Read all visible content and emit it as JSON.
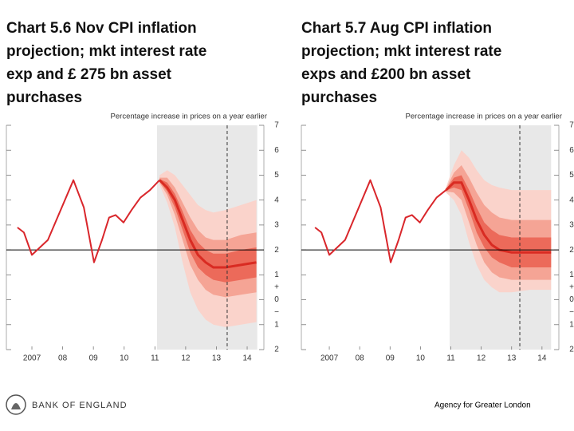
{
  "slide": {
    "bank_name": "BANK OF ENGLAND",
    "agency": "Agency for Greater London"
  },
  "chart_data": [
    {
      "type": "fan",
      "title": [
        "Chart 5.6 Nov CPI inflation",
        "projection; mkt interest rate",
        "exp and £ 275 bn asset",
        "purchases"
      ],
      "y_label": "Percentage increase in prices on a year earlier",
      "ylim": [
        -2,
        7
      ],
      "yticks": [
        7,
        6,
        5,
        4,
        3,
        2,
        1,
        0,
        {
          "value": -1,
          "label": "1"
        },
        {
          "value": -2,
          "label": "2"
        }
      ],
      "sign_labels": [
        {
          "value": 0.5,
          "label": "+"
        },
        {
          "value": -0.5,
          "label": "−"
        }
      ],
      "xlim": [
        2006.17,
        2014.44
      ],
      "xticks": [
        {
          "value": 2007,
          "label": "2007"
        },
        {
          "value": 2008,
          "label": "08"
        },
        {
          "value": 2009,
          "label": "09"
        },
        {
          "value": 2010,
          "label": "10"
        },
        {
          "value": 2011,
          "label": "11"
        },
        {
          "value": 2012,
          "label": "12"
        },
        {
          "value": 2013,
          "label": "13"
        },
        {
          "value": 2014,
          "label": "14"
        }
      ],
      "shading": [
        2011.07,
        2014.33
      ],
      "dashed_x": 2013.35,
      "reference_line": 2,
      "history": {
        "color": "#d9262b",
        "x": [
          2006.53,
          2006.74,
          2007.0,
          2007.52,
          2008.35,
          2008.69,
          2009.02,
          2009.28,
          2009.51,
          2009.72,
          2009.98,
          2010.24,
          2010.53,
          2010.84,
          2011.15
        ],
        "values": [
          2.9,
          2.7,
          1.8,
          2.4,
          4.8,
          3.7,
          1.5,
          2.4,
          3.3,
          3.4,
          3.1,
          3.6,
          4.1,
          4.4,
          4.8
        ]
      },
      "fan": {
        "x": [
          2011.15,
          2011.4,
          2011.65,
          2011.9,
          2012.15,
          2012.4,
          2012.65,
          2012.9,
          2013.3,
          2013.8,
          2014.3
        ],
        "central": [
          4.8,
          4.5,
          4.0,
          3.2,
          2.4,
          1.8,
          1.5,
          1.3,
          1.3,
          1.4,
          1.5
        ],
        "central_color": "#d92b22",
        "bands": [
          {
            "color": "#fad3cb",
            "upper": [
              5.0,
              5.2,
              5.0,
              4.6,
              4.2,
              3.8,
              3.6,
              3.5,
              3.6,
              3.8,
              4.0
            ],
            "lower": [
              4.6,
              3.9,
              2.9,
              1.5,
              0.3,
              -0.4,
              -0.8,
              -1.0,
              -1.1,
              -1.0,
              -0.9
            ]
          },
          {
            "color": "#f5a495",
            "upper": [
              4.9,
              4.9,
              4.5,
              3.9,
              3.3,
              2.8,
              2.5,
              2.4,
              2.4,
              2.6,
              2.7
            ],
            "lower": [
              4.7,
              4.2,
              3.4,
              2.4,
              1.4,
              0.8,
              0.4,
              0.2,
              0.1,
              0.2,
              0.3
            ]
          },
          {
            "color": "#ec6a5a",
            "upper": [
              4.85,
              4.7,
              4.25,
              3.55,
              2.8,
              2.3,
              2.0,
              1.85,
              1.85,
              2.0,
              2.1
            ],
            "lower": [
              4.75,
              4.35,
              3.7,
              2.8,
              1.9,
              1.3,
              1.0,
              0.8,
              0.7,
              0.8,
              0.9
            ]
          }
        ]
      }
    },
    {
      "type": "fan",
      "title": [
        "Chart 5.7 Aug CPI inflation",
        "projection; mkt interest rate",
        "exps and £200 bn asset",
        "purchases"
      ],
      "y_label": "Percentage increase in prices on a year earlier",
      "ylim": [
        -2,
        7
      ],
      "yticks": [
        7,
        6,
        5,
        4,
        3,
        2,
        1,
        0,
        {
          "value": -1,
          "label": "1"
        },
        {
          "value": -2,
          "label": "2"
        }
      ],
      "sign_labels": [
        {
          "value": 0.5,
          "label": "+"
        },
        {
          "value": -0.5,
          "label": "−"
        }
      ],
      "xlim": [
        2006.08,
        2014.45
      ],
      "xticks": [
        {
          "value": 2007,
          "label": "2007"
        },
        {
          "value": 2008,
          "label": "08"
        },
        {
          "value": 2009,
          "label": "09"
        },
        {
          "value": 2010,
          "label": "10"
        },
        {
          "value": 2011,
          "label": "11"
        },
        {
          "value": 2012,
          "label": "12"
        },
        {
          "value": 2013,
          "label": "13"
        },
        {
          "value": 2014,
          "label": "14"
        }
      ],
      "shading": [
        2010.96,
        2014.3
      ],
      "dashed_x": 2013.27,
      "reference_line": 2,
      "history": {
        "color": "#d9262b",
        "x": [
          2006.53,
          2006.74,
          2007.0,
          2007.52,
          2008.35,
          2008.69,
          2009.02,
          2009.28,
          2009.51,
          2009.72,
          2009.98,
          2010.24,
          2010.53,
          2010.84
        ],
        "values": [
          2.9,
          2.7,
          1.8,
          2.4,
          4.8,
          3.7,
          1.5,
          2.4,
          3.3,
          3.4,
          3.1,
          3.6,
          4.1,
          4.4
        ]
      },
      "fan": {
        "x": [
          2010.84,
          2011.1,
          2011.35,
          2011.6,
          2011.85,
          2012.1,
          2012.35,
          2012.6,
          2013.0,
          2013.6,
          2014.3
        ],
        "central": [
          4.4,
          4.7,
          4.7,
          4.0,
          3.2,
          2.6,
          2.2,
          2.0,
          1.9,
          1.9,
          1.9
        ],
        "central_color": "#d92b22",
        "bands": [
          {
            "color": "#fad3cb",
            "upper": [
              4.5,
              5.4,
              6.0,
              5.7,
              5.2,
              4.8,
              4.6,
              4.5,
              4.4,
              4.4,
              4.4
            ],
            "lower": [
              4.3,
              4.0,
              3.4,
              2.3,
              1.4,
              0.8,
              0.5,
              0.3,
              0.3,
              0.4,
              0.4
            ]
          },
          {
            "color": "#f5a495",
            "upper": [
              4.45,
              5.1,
              5.4,
              4.9,
              4.3,
              3.8,
              3.5,
              3.3,
              3.2,
              3.2,
              3.2
            ],
            "lower": [
              4.35,
              4.3,
              4.0,
              3.1,
              2.2,
              1.5,
              1.1,
              0.9,
              0.8,
              0.8,
              0.8
            ]
          },
          {
            "color": "#ec6a5a",
            "upper": [
              4.42,
              4.9,
              5.0,
              4.4,
              3.7,
              3.1,
              2.8,
              2.6,
              2.5,
              2.5,
              2.5
            ],
            "lower": [
              4.38,
              4.5,
              4.4,
              3.6,
              2.7,
              2.1,
              1.7,
              1.5,
              1.3,
              1.3,
              1.3
            ]
          }
        ]
      }
    }
  ]
}
